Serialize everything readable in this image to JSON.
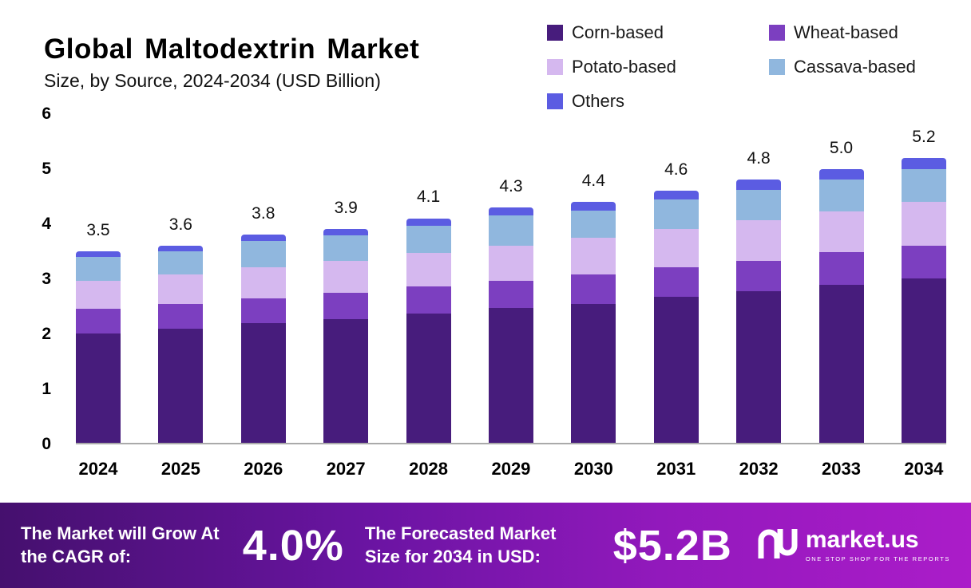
{
  "header": {
    "title": "Global Maltodextrin Market",
    "subtitle": "Size, by Source, 2024-2034 (USD Billion)"
  },
  "chart_data": {
    "type": "bar",
    "stacked": true,
    "title": "Global Maltodextrin Market Size, by Source, 2024-2034 (USD Billion)",
    "categories": [
      "2024",
      "2025",
      "2026",
      "2027",
      "2028",
      "2029",
      "2030",
      "2031",
      "2032",
      "2033",
      "2034"
    ],
    "totals": [
      3.5,
      3.6,
      3.8,
      3.9,
      4.1,
      4.3,
      4.4,
      4.6,
      4.8,
      5.0,
      5.2
    ],
    "series": [
      {
        "name": "Corn-based",
        "color": "#471c7c",
        "values": [
          2.0,
          2.08,
          2.18,
          2.26,
          2.36,
          2.46,
          2.54,
          2.66,
          2.76,
          2.88,
          3.0
        ]
      },
      {
        "name": "Wheat-based",
        "color": "#7c3fc0",
        "values": [
          0.44,
          0.45,
          0.46,
          0.48,
          0.5,
          0.5,
          0.54,
          0.54,
          0.56,
          0.6,
          0.6
        ]
      },
      {
        "name": "Potato-based",
        "color": "#d5b8ef",
        "values": [
          0.52,
          0.54,
          0.56,
          0.58,
          0.6,
          0.64,
          0.66,
          0.7,
          0.74,
          0.74,
          0.8
        ]
      },
      {
        "name": "Cassava-based",
        "color": "#90b7de",
        "values": [
          0.44,
          0.43,
          0.48,
          0.46,
          0.5,
          0.55,
          0.5,
          0.54,
          0.56,
          0.58,
          0.6
        ]
      },
      {
        "name": "Others",
        "color": "#5b5ce2",
        "values": [
          0.1,
          0.1,
          0.12,
          0.12,
          0.14,
          0.15,
          0.16,
          0.16,
          0.18,
          0.2,
          0.2
        ]
      }
    ],
    "ylim": [
      0,
      6
    ],
    "yticks": [
      0,
      1,
      2,
      3,
      4,
      5,
      6
    ],
    "legend_position": "top-right",
    "grid": false
  },
  "footer": {
    "cagr_label": "The Market will Grow At the CAGR of:",
    "cagr_value": "4.0%",
    "forecast_label": "The Forecasted Market Size for 2034 in USD:",
    "forecast_value": "$5.2B",
    "brand": "market.us",
    "brand_tagline": "ONE STOP SHOP FOR THE REPORTS"
  }
}
